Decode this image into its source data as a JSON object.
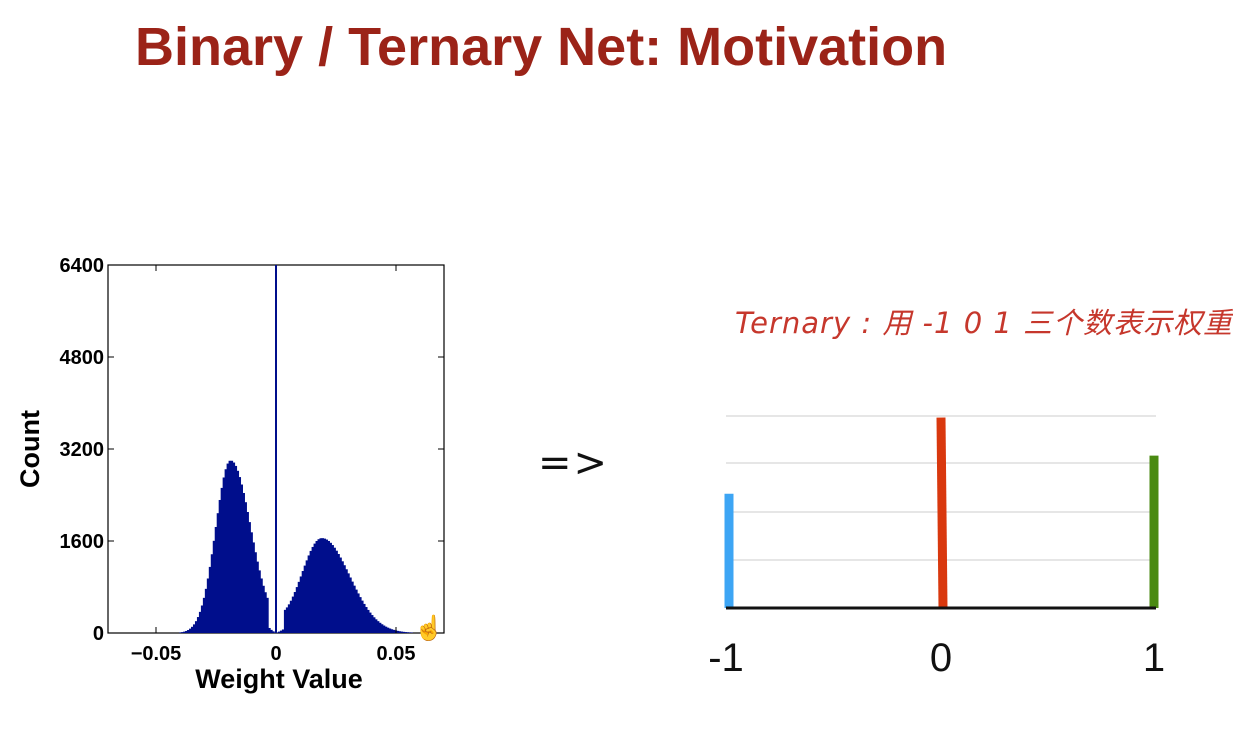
{
  "title": "Binary / Ternary Net: Motivation",
  "arrow": "=>",
  "note": "Ternary : 用 -1 0 1 三个数表示权重",
  "chart_data": [
    {
      "type": "bar",
      "title": "",
      "xlabel": "Weight Value",
      "ylabel": "Count",
      "xlim": [
        -0.07,
        0.07
      ],
      "ylim": [
        0,
        6400
      ],
      "xticks": [
        -0.05,
        0,
        0.05
      ],
      "xtick_labels": [
        "−0.05",
        "0",
        "0.05"
      ],
      "yticks": [
        0,
        1600,
        3200,
        4800,
        6400
      ],
      "ytick_labels": [
        "0",
        "1600",
        "3200",
        "4800",
        "6400"
      ],
      "color": "#000e8c",
      "center_line": 0,
      "modes": [
        {
          "center": -0.019,
          "peak": 3000,
          "width": 0.0062
        },
        {
          "center": 0.019,
          "peak": 1650,
          "width": 0.0085
        }
      ]
    },
    {
      "type": "bar",
      "title": "",
      "categories": [
        "-1",
        "0",
        "1"
      ],
      "values": [
        2.4,
        4.0,
        3.2
      ],
      "ylim": [
        0,
        4.2
      ],
      "colors": [
        "#3da5f4",
        "#d9380e",
        "#4a8a12"
      ],
      "grid": true
    }
  ]
}
